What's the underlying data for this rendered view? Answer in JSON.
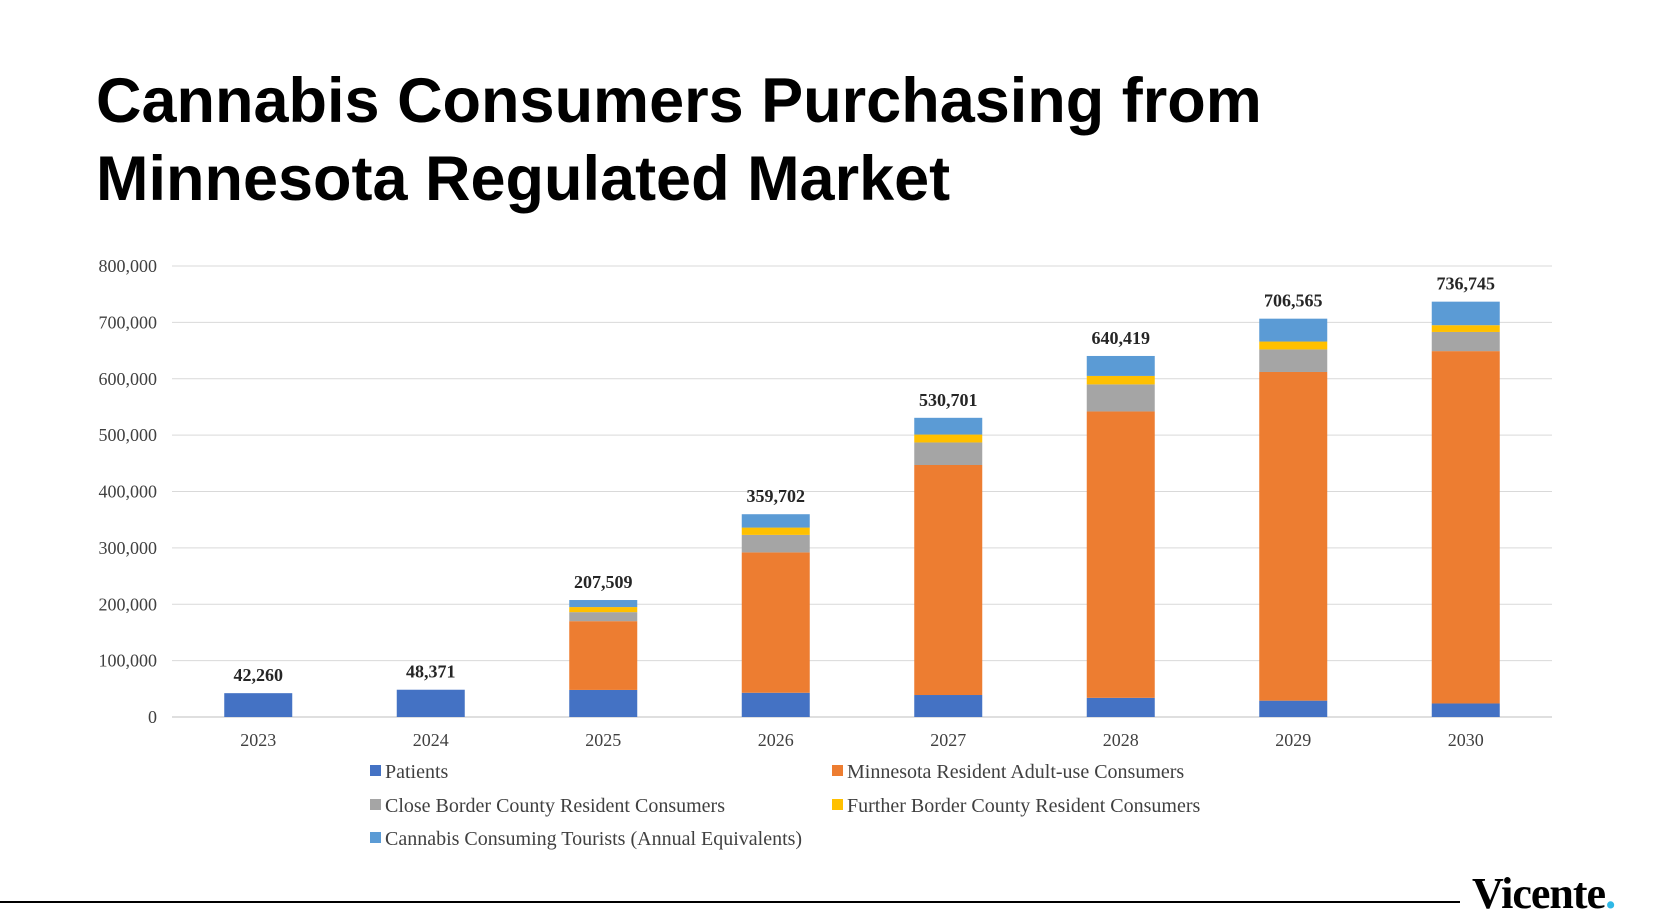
{
  "title": "Cannabis Consumers Purchasing from Minnesota Regulated Market",
  "brand": {
    "name": "Vicente",
    "dot": ".",
    "dot_color": "#2fb8e6"
  },
  "chart_data": {
    "type": "bar",
    "stacked": true,
    "title": "",
    "xlabel": "",
    "ylabel": "",
    "ylim": [
      0,
      800000
    ],
    "yticks": [
      "0",
      "100,000",
      "200,000",
      "300,000",
      "400,000",
      "500,000",
      "600,000",
      "700,000",
      "800,000"
    ],
    "grid": true,
    "legend_position": "bottom",
    "categories": [
      "2023",
      "2024",
      "2025",
      "2026",
      "2027",
      "2028",
      "2029",
      "2030"
    ],
    "totals": [
      "42,260",
      "48,371",
      "207,509",
      "359,702",
      "530,701",
      "640,419",
      "706,565",
      "736,745"
    ],
    "series": [
      {
        "name": "Patients",
        "color": "#4472c4",
        "values": [
          42260,
          48371,
          48000,
          43000,
          39000,
          34000,
          29000,
          24000
        ]
      },
      {
        "name": "Minnesota Resident Adult-use Consumers",
        "color": "#ed7d31",
        "values": [
          0,
          0,
          122000,
          249000,
          408000,
          508000,
          583000,
          625000
        ]
      },
      {
        "name": "Close Border County Resident Consumers",
        "color": "#a5a5a5",
        "values": [
          0,
          0,
          16000,
          31000,
          40000,
          48000,
          40000,
          34000
        ]
      },
      {
        "name": "Further Border County Resident Consumers",
        "color": "#ffc000",
        "values": [
          0,
          0,
          9000,
          13000,
          14000,
          15000,
          14000,
          12000
        ]
      },
      {
        "name": "Cannabis Consuming Tourists (Annual Equivalents)",
        "color": "#5b9bd5",
        "values": [
          0,
          0,
          12509,
          23702,
          29701,
          35419,
          40565,
          41745
        ]
      }
    ]
  }
}
